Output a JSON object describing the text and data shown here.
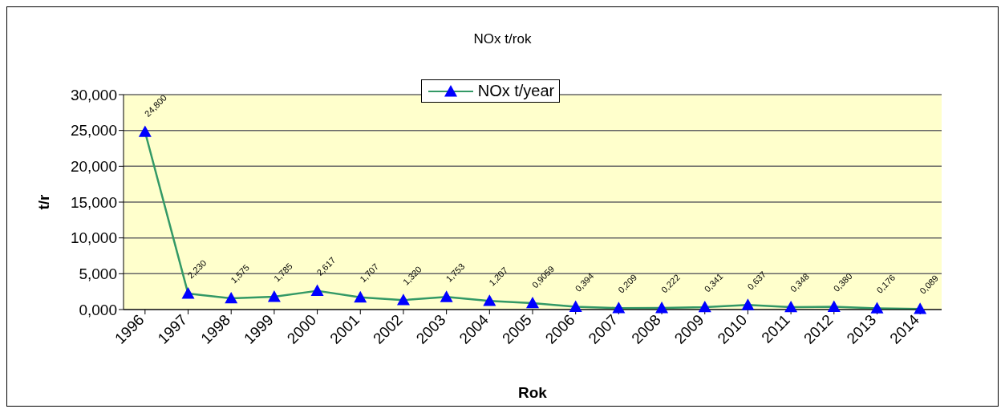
{
  "chart_data": {
    "type": "line",
    "title": "NOx  t/rok",
    "xlabel": "Rok",
    "ylabel": "t/r",
    "categories": [
      "1996",
      "1997",
      "1998",
      "1999",
      "2000",
      "2001",
      "2002",
      "2003",
      "2004",
      "2005",
      "2006",
      "2007",
      "2008",
      "2009",
      "2010",
      "2011",
      "2012",
      "2013",
      "2014"
    ],
    "series": [
      {
        "name": "NOx  t/year",
        "color": "#339966",
        "values": [
          24.8,
          2.23,
          1.575,
          1.785,
          2.617,
          1.707,
          1.32,
          1.753,
          1.207,
          0.9059,
          0.394,
          0.209,
          0.222,
          0.341,
          0.637,
          0.348,
          0.38,
          0.176,
          0.089
        ],
        "value_labels": [
          "24,800",
          "2,230",
          "1,575",
          "1,785",
          "2,617",
          "1,707",
          "1,320",
          "1,753",
          "1,207",
          "0,9059",
          "0,394",
          "0,209",
          "0,222",
          "0,341",
          "0,637",
          "0,348",
          "0,380",
          "0,176",
          "0,089"
        ]
      }
    ],
    "ylim": [
      0,
      30
    ],
    "yticks": [
      {
        "value": 0,
        "label": "0,000"
      },
      {
        "value": 5,
        "label": "5,000"
      },
      {
        "value": 10,
        "label": "10,000"
      },
      {
        "value": 15,
        "label": "15,000"
      },
      {
        "value": 20,
        "label": "20,000"
      },
      {
        "value": 25,
        "label": "25,000"
      },
      {
        "value": 30,
        "label": "30,000"
      }
    ],
    "grid": "y",
    "legend": "top",
    "marker": "triangle",
    "line_style": "solid"
  }
}
